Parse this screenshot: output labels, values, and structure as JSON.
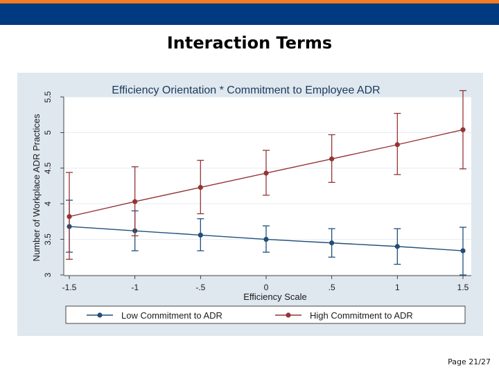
{
  "header": {
    "accent_color": "#f47b20",
    "bar_color": "#003a80"
  },
  "slide": {
    "title": "Interaction Terms",
    "page": "Page 21/27"
  },
  "chart_data": {
    "type": "line",
    "title": "Efficiency Orientation * Commitment to Employee ADR",
    "xlabel": "Efficiency Scale",
    "ylabel": "Number of Workplace ADR Practices",
    "x": [
      -1.5,
      -1,
      -0.5,
      0,
      0.5,
      1,
      1.5
    ],
    "x_tick_labels": [
      "-1.5",
      "-1",
      "-.5",
      "0",
      ".5",
      "1",
      "1.5"
    ],
    "y_ticks": [
      3,
      3.5,
      4,
      4.5,
      5,
      5.5
    ],
    "y_tick_labels": [
      "3",
      "3.5",
      "4",
      "4.5",
      "5",
      "5.5"
    ],
    "xlim": [
      -1.5,
      1.5
    ],
    "ylim": [
      3,
      5.5
    ],
    "grid": true,
    "legend_position": "bottom",
    "series": [
      {
        "name": "Low Commitment to ADR",
        "color": "#1f4e79",
        "values": [
          3.68,
          3.62,
          3.56,
          3.5,
          3.45,
          3.4,
          3.34
        ],
        "lower": [
          3.32,
          3.34,
          3.34,
          3.32,
          3.25,
          3.15,
          3.0
        ],
        "upper": [
          4.05,
          3.9,
          3.79,
          3.69,
          3.65,
          3.65,
          3.67
        ]
      },
      {
        "name": "High Commitment to ADR",
        "color": "#943434",
        "values": [
          3.82,
          4.03,
          4.23,
          4.43,
          4.63,
          4.83,
          5.04
        ],
        "lower": [
          3.22,
          3.55,
          3.86,
          4.12,
          4.3,
          4.41,
          4.49
        ],
        "upper": [
          4.44,
          4.52,
          4.61,
          4.75,
          4.97,
          5.27,
          5.59
        ]
      }
    ]
  }
}
